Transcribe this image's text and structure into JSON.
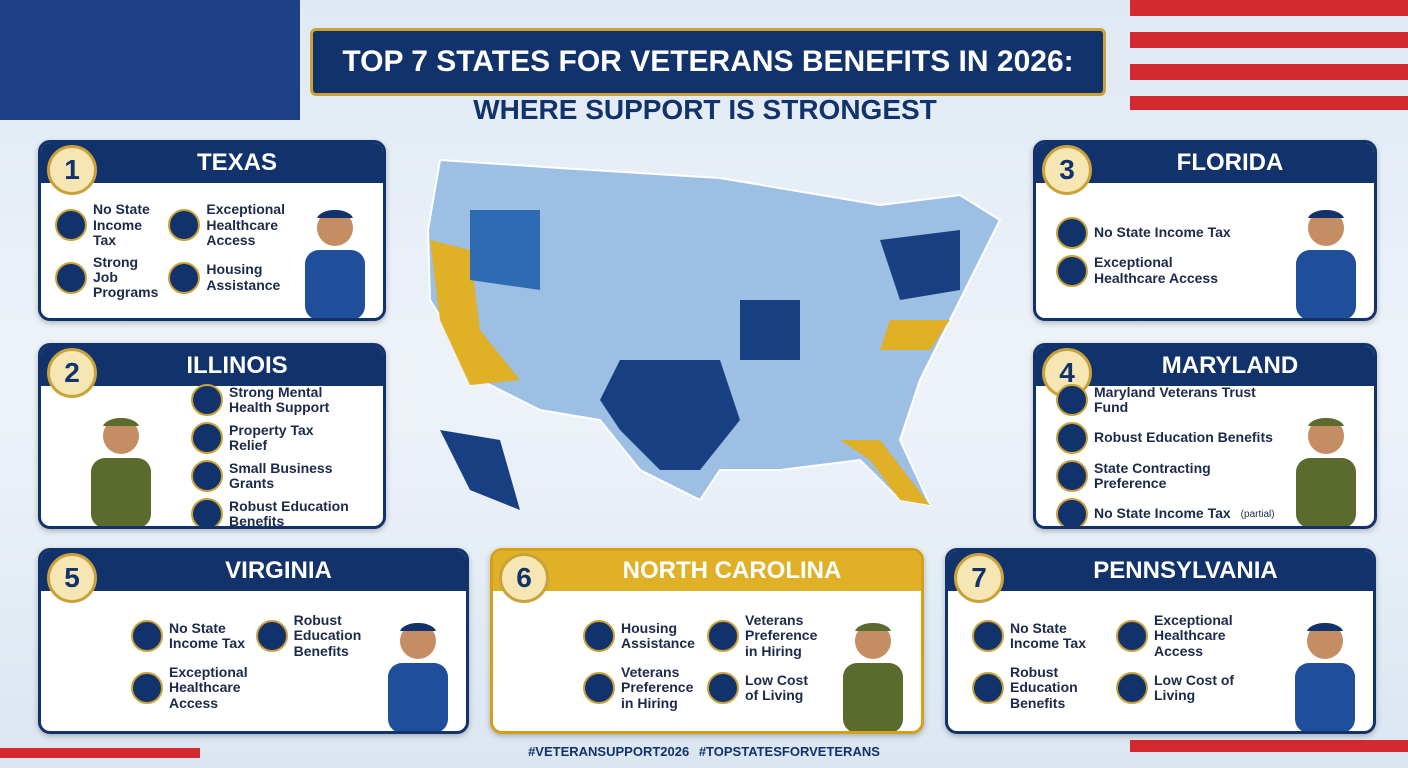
{
  "header": {
    "title": "TOP 7 STATES FOR VETERANS BENEFITS IN 2026:",
    "subtitle": "WHERE SUPPORT IS STRONGEST"
  },
  "states": [
    {
      "rank": 1,
      "name": "TEXAS",
      "benefits": [
        "No State Income Tax",
        "Exceptional Healthcare Access",
        "Strong Job Programs",
        "Housing Assistance"
      ]
    },
    {
      "rank": 2,
      "name": "ILLINOIS",
      "benefits": [
        "Strong Mental Health Support",
        "Property Tax Relief",
        "Small Business Grants",
        "Robust Education Benefits"
      ]
    },
    {
      "rank": 3,
      "name": "FLORIDA",
      "benefits": [
        "No State Income Tax",
        "Exceptional Healthcare Access"
      ]
    },
    {
      "rank": 4,
      "name": "MARYLAND",
      "benefits": [
        "Maryland Veterans Trust Fund",
        "Robust Education Benefits",
        "State Contracting Preference",
        "No State Income Tax"
      ],
      "note": "(partial)"
    },
    {
      "rank": 5,
      "name": "VIRGINIA",
      "benefits": [
        "No State Income Tax",
        "Robust Education Benefits",
        "Exceptional Healthcare Access"
      ]
    },
    {
      "rank": 6,
      "name": "NORTH CAROLINA",
      "benefits": [
        "Housing Assistance",
        "Veterans Preference in Hiring",
        "Veterans Preference in Hiring",
        "Low Cost of Living"
      ]
    },
    {
      "rank": 7,
      "name": "PENNSYLVANIA",
      "benefits": [
        "No State Income Tax",
        "Exceptional Healthcare Access",
        "Robust Education Benefits",
        "Low Cost of Living"
      ]
    }
  ],
  "hashtags": [
    "#VETERANSUPPORT2026",
    "#TOPSTATESFORVETERANS"
  ]
}
